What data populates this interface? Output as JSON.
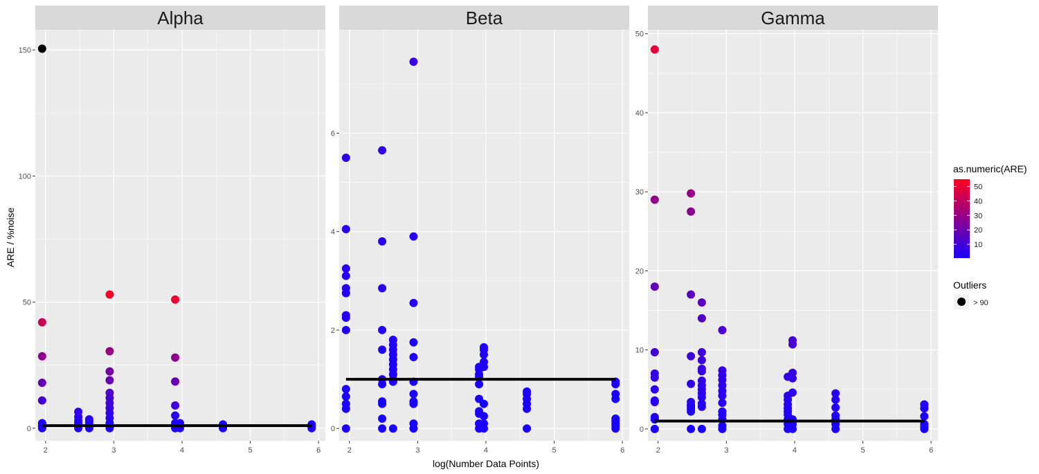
{
  "figure": {
    "xlabel": "log(Number Data Points)",
    "ylabel": "ARE / %noise",
    "colors": {
      "panel_bg": "#EBEBEB",
      "strip_bg": "#D9D9D9",
      "grid": "#FFFFFF",
      "low": "#1A00FF",
      "high": "#FF0020",
      "outlier": "#000000",
      "hline": "#000000"
    }
  },
  "legend": {
    "color_title": "as.numeric(ARE)",
    "color_ticks": [
      "10",
      "20",
      "30",
      "40",
      "50"
    ],
    "color_tick_values": [
      10,
      20,
      30,
      40,
      50
    ],
    "color_range": [
      0.5,
      55
    ],
    "outlier_title": "Outliers",
    "outlier_label": "> 90"
  },
  "chart_data": [
    {
      "type": "scatter",
      "title": "Alpha",
      "xlim": [
        1.85,
        6.1
      ],
      "ylim": [
        -5,
        158
      ],
      "x_ticks": [
        2,
        3,
        4,
        5,
        6
      ],
      "y_ticks": [
        0,
        50,
        100,
        150
      ],
      "hline": 1,
      "hline_x": [
        1.95,
        5.9
      ],
      "points": [
        {
          "x": 1.95,
          "y": 150.5,
          "outlier": true
        },
        {
          "x": 1.95,
          "y": 42
        },
        {
          "x": 1.95,
          "y": 28.5
        },
        {
          "x": 1.95,
          "y": 18
        },
        {
          "x": 1.95,
          "y": 11
        },
        {
          "x": 1.95,
          "y": 2
        },
        {
          "x": 1.95,
          "y": 1
        },
        {
          "x": 1.95,
          "y": 0.5
        },
        {
          "x": 1.95,
          "y": 0
        },
        {
          "x": 2.48,
          "y": 6.5
        },
        {
          "x": 2.48,
          "y": 4.5
        },
        {
          "x": 2.48,
          "y": 3
        },
        {
          "x": 2.48,
          "y": 2
        },
        {
          "x": 2.48,
          "y": 1
        },
        {
          "x": 2.48,
          "y": 0
        },
        {
          "x": 2.64,
          "y": 3.5
        },
        {
          "x": 2.64,
          "y": 2.5
        },
        {
          "x": 2.64,
          "y": 1.5
        },
        {
          "x": 2.64,
          "y": 0.5
        },
        {
          "x": 2.64,
          "y": 0
        },
        {
          "x": 2.94,
          "y": 53
        },
        {
          "x": 2.94,
          "y": 30.5
        },
        {
          "x": 2.94,
          "y": 22.5
        },
        {
          "x": 2.94,
          "y": 19
        },
        {
          "x": 2.94,
          "y": 14
        },
        {
          "x": 2.94,
          "y": 12
        },
        {
          "x": 2.94,
          "y": 10
        },
        {
          "x": 2.94,
          "y": 8
        },
        {
          "x": 2.94,
          "y": 6
        },
        {
          "x": 2.94,
          "y": 4
        },
        {
          "x": 2.94,
          "y": 2
        },
        {
          "x": 2.94,
          "y": 0.5
        },
        {
          "x": 2.94,
          "y": 0
        },
        {
          "x": 3.9,
          "y": 51
        },
        {
          "x": 3.9,
          "y": 28
        },
        {
          "x": 3.9,
          "y": 18.5
        },
        {
          "x": 3.9,
          "y": 9
        },
        {
          "x": 3.9,
          "y": 5
        },
        {
          "x": 3.9,
          "y": 2
        },
        {
          "x": 3.9,
          "y": 0.5
        },
        {
          "x": 3.9,
          "y": 0
        },
        {
          "x": 3.97,
          "y": 2
        },
        {
          "x": 3.97,
          "y": 1
        },
        {
          "x": 3.97,
          "y": 0
        },
        {
          "x": 4.6,
          "y": 1.5
        },
        {
          "x": 4.6,
          "y": 0.8
        },
        {
          "x": 4.6,
          "y": 0
        },
        {
          "x": 5.9,
          "y": 1.5
        },
        {
          "x": 5.9,
          "y": 0.8
        },
        {
          "x": 5.9,
          "y": 0
        }
      ]
    },
    {
      "type": "scatter",
      "title": "Beta",
      "xlim": [
        1.85,
        6.1
      ],
      "ylim": [
        -0.25,
        8.1
      ],
      "x_ticks": [
        2,
        3,
        4,
        5,
        6
      ],
      "y_ticks": [
        0,
        2,
        4,
        6
      ],
      "hline": 1,
      "hline_x": [
        1.95,
        5.9
      ],
      "points": [
        {
          "x": 1.95,
          "y": 5.5
        },
        {
          "x": 1.95,
          "y": 4.05
        },
        {
          "x": 1.95,
          "y": 3.25
        },
        {
          "x": 1.95,
          "y": 3.1
        },
        {
          "x": 1.95,
          "y": 2.85
        },
        {
          "x": 1.95,
          "y": 2.75
        },
        {
          "x": 1.95,
          "y": 2.3
        },
        {
          "x": 1.95,
          "y": 2.25
        },
        {
          "x": 1.95,
          "y": 2
        },
        {
          "x": 1.95,
          "y": 0.8
        },
        {
          "x": 1.95,
          "y": 0.65
        },
        {
          "x": 1.95,
          "y": 0.5
        },
        {
          "x": 1.95,
          "y": 0.4
        },
        {
          "x": 1.95,
          "y": 0
        },
        {
          "x": 2.48,
          "y": 5.65
        },
        {
          "x": 2.48,
          "y": 3.8
        },
        {
          "x": 2.48,
          "y": 2.85
        },
        {
          "x": 2.48,
          "y": 2
        },
        {
          "x": 2.48,
          "y": 1.6
        },
        {
          "x": 2.48,
          "y": 1
        },
        {
          "x": 2.48,
          "y": 0.9
        },
        {
          "x": 2.48,
          "y": 0.55
        },
        {
          "x": 2.48,
          "y": 0.5
        },
        {
          "x": 2.48,
          "y": 0.2
        },
        {
          "x": 2.48,
          "y": 0
        },
        {
          "x": 2.64,
          "y": 1.8
        },
        {
          "x": 2.64,
          "y": 1.7
        },
        {
          "x": 2.64,
          "y": 1.6
        },
        {
          "x": 2.64,
          "y": 1.5
        },
        {
          "x": 2.64,
          "y": 1.4
        },
        {
          "x": 2.64,
          "y": 1.3
        },
        {
          "x": 2.64,
          "y": 1.2
        },
        {
          "x": 2.64,
          "y": 1.1
        },
        {
          "x": 2.64,
          "y": 1
        },
        {
          "x": 2.64,
          "y": 0.95
        },
        {
          "x": 2.64,
          "y": 0
        },
        {
          "x": 2.94,
          "y": 7.45
        },
        {
          "x": 2.94,
          "y": 3.9
        },
        {
          "x": 2.94,
          "y": 2.55
        },
        {
          "x": 2.94,
          "y": 1.75
        },
        {
          "x": 2.94,
          "y": 1.45
        },
        {
          "x": 2.94,
          "y": 0.95
        },
        {
          "x": 2.94,
          "y": 0.7
        },
        {
          "x": 2.94,
          "y": 0.55
        },
        {
          "x": 2.94,
          "y": 0.5
        },
        {
          "x": 2.94,
          "y": 0.1
        },
        {
          "x": 2.94,
          "y": 0
        },
        {
          "x": 3.9,
          "y": 1.25
        },
        {
          "x": 3.9,
          "y": 1.2
        },
        {
          "x": 3.9,
          "y": 1.1
        },
        {
          "x": 3.9,
          "y": 1.05
        },
        {
          "x": 3.9,
          "y": 0.9
        },
        {
          "x": 3.9,
          "y": 0.6
        },
        {
          "x": 3.9,
          "y": 0.35
        },
        {
          "x": 3.9,
          "y": 0.3
        },
        {
          "x": 3.9,
          "y": 0.1
        },
        {
          "x": 3.9,
          "y": 0
        },
        {
          "x": 3.97,
          "y": 1.65
        },
        {
          "x": 3.97,
          "y": 1.6
        },
        {
          "x": 3.97,
          "y": 1.5
        },
        {
          "x": 3.97,
          "y": 1.35
        },
        {
          "x": 3.97,
          "y": 1.25
        },
        {
          "x": 3.97,
          "y": 0.5
        },
        {
          "x": 3.97,
          "y": 0.25
        },
        {
          "x": 3.97,
          "y": 0.1
        },
        {
          "x": 3.97,
          "y": 0
        },
        {
          "x": 4.6,
          "y": 0.75
        },
        {
          "x": 4.6,
          "y": 0.7
        },
        {
          "x": 4.6,
          "y": 0.6
        },
        {
          "x": 4.6,
          "y": 0.5
        },
        {
          "x": 4.6,
          "y": 0.4
        },
        {
          "x": 4.6,
          "y": 0
        },
        {
          "x": 5.9,
          "y": 0.95
        },
        {
          "x": 5.9,
          "y": 0.9
        },
        {
          "x": 5.9,
          "y": 0.7
        },
        {
          "x": 5.9,
          "y": 0.6
        },
        {
          "x": 5.9,
          "y": 0.2
        },
        {
          "x": 5.9,
          "y": 0.15
        },
        {
          "x": 5.9,
          "y": 0.1
        },
        {
          "x": 5.9,
          "y": 0.05
        },
        {
          "x": 5.9,
          "y": 0
        }
      ]
    },
    {
      "type": "scatter",
      "title": "Gamma",
      "xlim": [
        1.85,
        6.1
      ],
      "ylim": [
        -1.5,
        50.5
      ],
      "x_ticks": [
        2,
        3,
        4,
        5,
        6
      ],
      "y_ticks": [
        0,
        10,
        20,
        30,
        40,
        50
      ],
      "hline": 1,
      "hline_x": [
        1.95,
        5.9
      ],
      "points": [
        {
          "x": 1.95,
          "y": 48
        },
        {
          "x": 1.95,
          "y": 29
        },
        {
          "x": 1.95,
          "y": 18
        },
        {
          "x": 1.95,
          "y": 9.7
        },
        {
          "x": 1.95,
          "y": 7
        },
        {
          "x": 1.95,
          "y": 6.5
        },
        {
          "x": 1.95,
          "y": 5
        },
        {
          "x": 1.95,
          "y": 3.6
        },
        {
          "x": 1.95,
          "y": 3.4
        },
        {
          "x": 1.95,
          "y": 1.5
        },
        {
          "x": 1.95,
          "y": 1.2
        },
        {
          "x": 1.95,
          "y": 0
        },
        {
          "x": 2.48,
          "y": 29.8
        },
        {
          "x": 2.48,
          "y": 27.5
        },
        {
          "x": 2.48,
          "y": 17
        },
        {
          "x": 2.48,
          "y": 9.2
        },
        {
          "x": 2.48,
          "y": 5.7
        },
        {
          "x": 2.48,
          "y": 3.4
        },
        {
          "x": 2.48,
          "y": 3
        },
        {
          "x": 2.48,
          "y": 2.8
        },
        {
          "x": 2.48,
          "y": 2.5
        },
        {
          "x": 2.48,
          "y": 2.2
        },
        {
          "x": 2.48,
          "y": 0
        },
        {
          "x": 2.64,
          "y": 16
        },
        {
          "x": 2.64,
          "y": 14
        },
        {
          "x": 2.64,
          "y": 9.7
        },
        {
          "x": 2.64,
          "y": 8.7
        },
        {
          "x": 2.64,
          "y": 7.6
        },
        {
          "x": 2.64,
          "y": 7.3
        },
        {
          "x": 2.64,
          "y": 6.1
        },
        {
          "x": 2.64,
          "y": 5.5
        },
        {
          "x": 2.64,
          "y": 5
        },
        {
          "x": 2.64,
          "y": 4.5
        },
        {
          "x": 2.64,
          "y": 4
        },
        {
          "x": 2.64,
          "y": 3.2
        },
        {
          "x": 2.64,
          "y": 2.8
        },
        {
          "x": 2.64,
          "y": 0
        },
        {
          "x": 2.94,
          "y": 12.5
        },
        {
          "x": 2.94,
          "y": 7.4
        },
        {
          "x": 2.94,
          "y": 6.8
        },
        {
          "x": 2.94,
          "y": 6.2
        },
        {
          "x": 2.94,
          "y": 5.5
        },
        {
          "x": 2.94,
          "y": 4.8
        },
        {
          "x": 2.94,
          "y": 4.2
        },
        {
          "x": 2.94,
          "y": 3.3
        },
        {
          "x": 2.94,
          "y": 2.2
        },
        {
          "x": 2.94,
          "y": 1.8
        },
        {
          "x": 2.94,
          "y": 1.2
        },
        {
          "x": 2.94,
          "y": 0.4
        },
        {
          "x": 2.94,
          "y": 0
        },
        {
          "x": 3.9,
          "y": 6.6
        },
        {
          "x": 3.9,
          "y": 4.2
        },
        {
          "x": 3.9,
          "y": 3.7
        },
        {
          "x": 3.9,
          "y": 3.1
        },
        {
          "x": 3.9,
          "y": 2.6
        },
        {
          "x": 3.9,
          "y": 2.2
        },
        {
          "x": 3.9,
          "y": 1.8
        },
        {
          "x": 3.9,
          "y": 1.2
        },
        {
          "x": 3.9,
          "y": 0.6
        },
        {
          "x": 3.9,
          "y": 0
        },
        {
          "x": 3.97,
          "y": 11.2
        },
        {
          "x": 3.97,
          "y": 10.7
        },
        {
          "x": 3.97,
          "y": 7.1
        },
        {
          "x": 3.97,
          "y": 6.4
        },
        {
          "x": 3.97,
          "y": 4.6
        },
        {
          "x": 3.97,
          "y": 1.2
        },
        {
          "x": 3.97,
          "y": 0.6
        },
        {
          "x": 3.97,
          "y": 0
        },
        {
          "x": 4.6,
          "y": 4.5
        },
        {
          "x": 4.6,
          "y": 3.7
        },
        {
          "x": 4.6,
          "y": 2.7
        },
        {
          "x": 4.6,
          "y": 1.7
        },
        {
          "x": 4.6,
          "y": 1.2
        },
        {
          "x": 4.6,
          "y": 0.6
        },
        {
          "x": 4.6,
          "y": 0
        },
        {
          "x": 5.9,
          "y": 3.1
        },
        {
          "x": 5.9,
          "y": 2.6
        },
        {
          "x": 5.9,
          "y": 1.6
        },
        {
          "x": 5.9,
          "y": 0.6
        },
        {
          "x": 5.9,
          "y": 0.3
        },
        {
          "x": 5.9,
          "y": 0
        }
      ]
    }
  ]
}
